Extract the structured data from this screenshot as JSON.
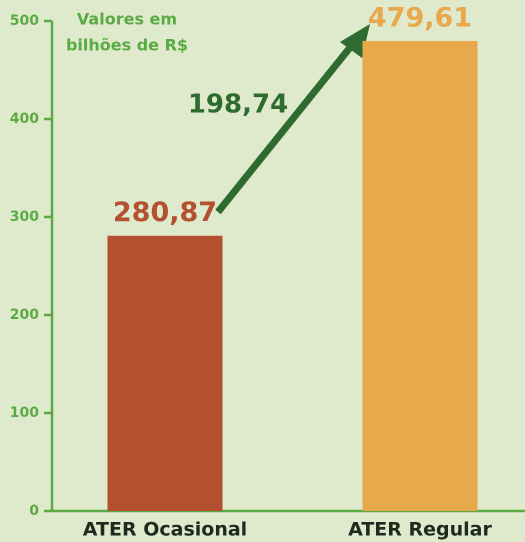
{
  "chart_data": {
    "type": "bar",
    "subtitle": [
      "Valores em",
      "bilhões de R$"
    ],
    "categories": [
      "ATER Ocasional",
      "ATER Regular"
    ],
    "values": [
      280.87,
      479.61
    ],
    "value_labels": [
      "280,87",
      "479,61"
    ],
    "colors": [
      "#b3502f",
      "#e8a84c"
    ],
    "annotation": "198,74",
    "ylim": [
      0,
      500
    ],
    "yticks": [
      0,
      100,
      200,
      300,
      400,
      500
    ],
    "grid": false
  }
}
